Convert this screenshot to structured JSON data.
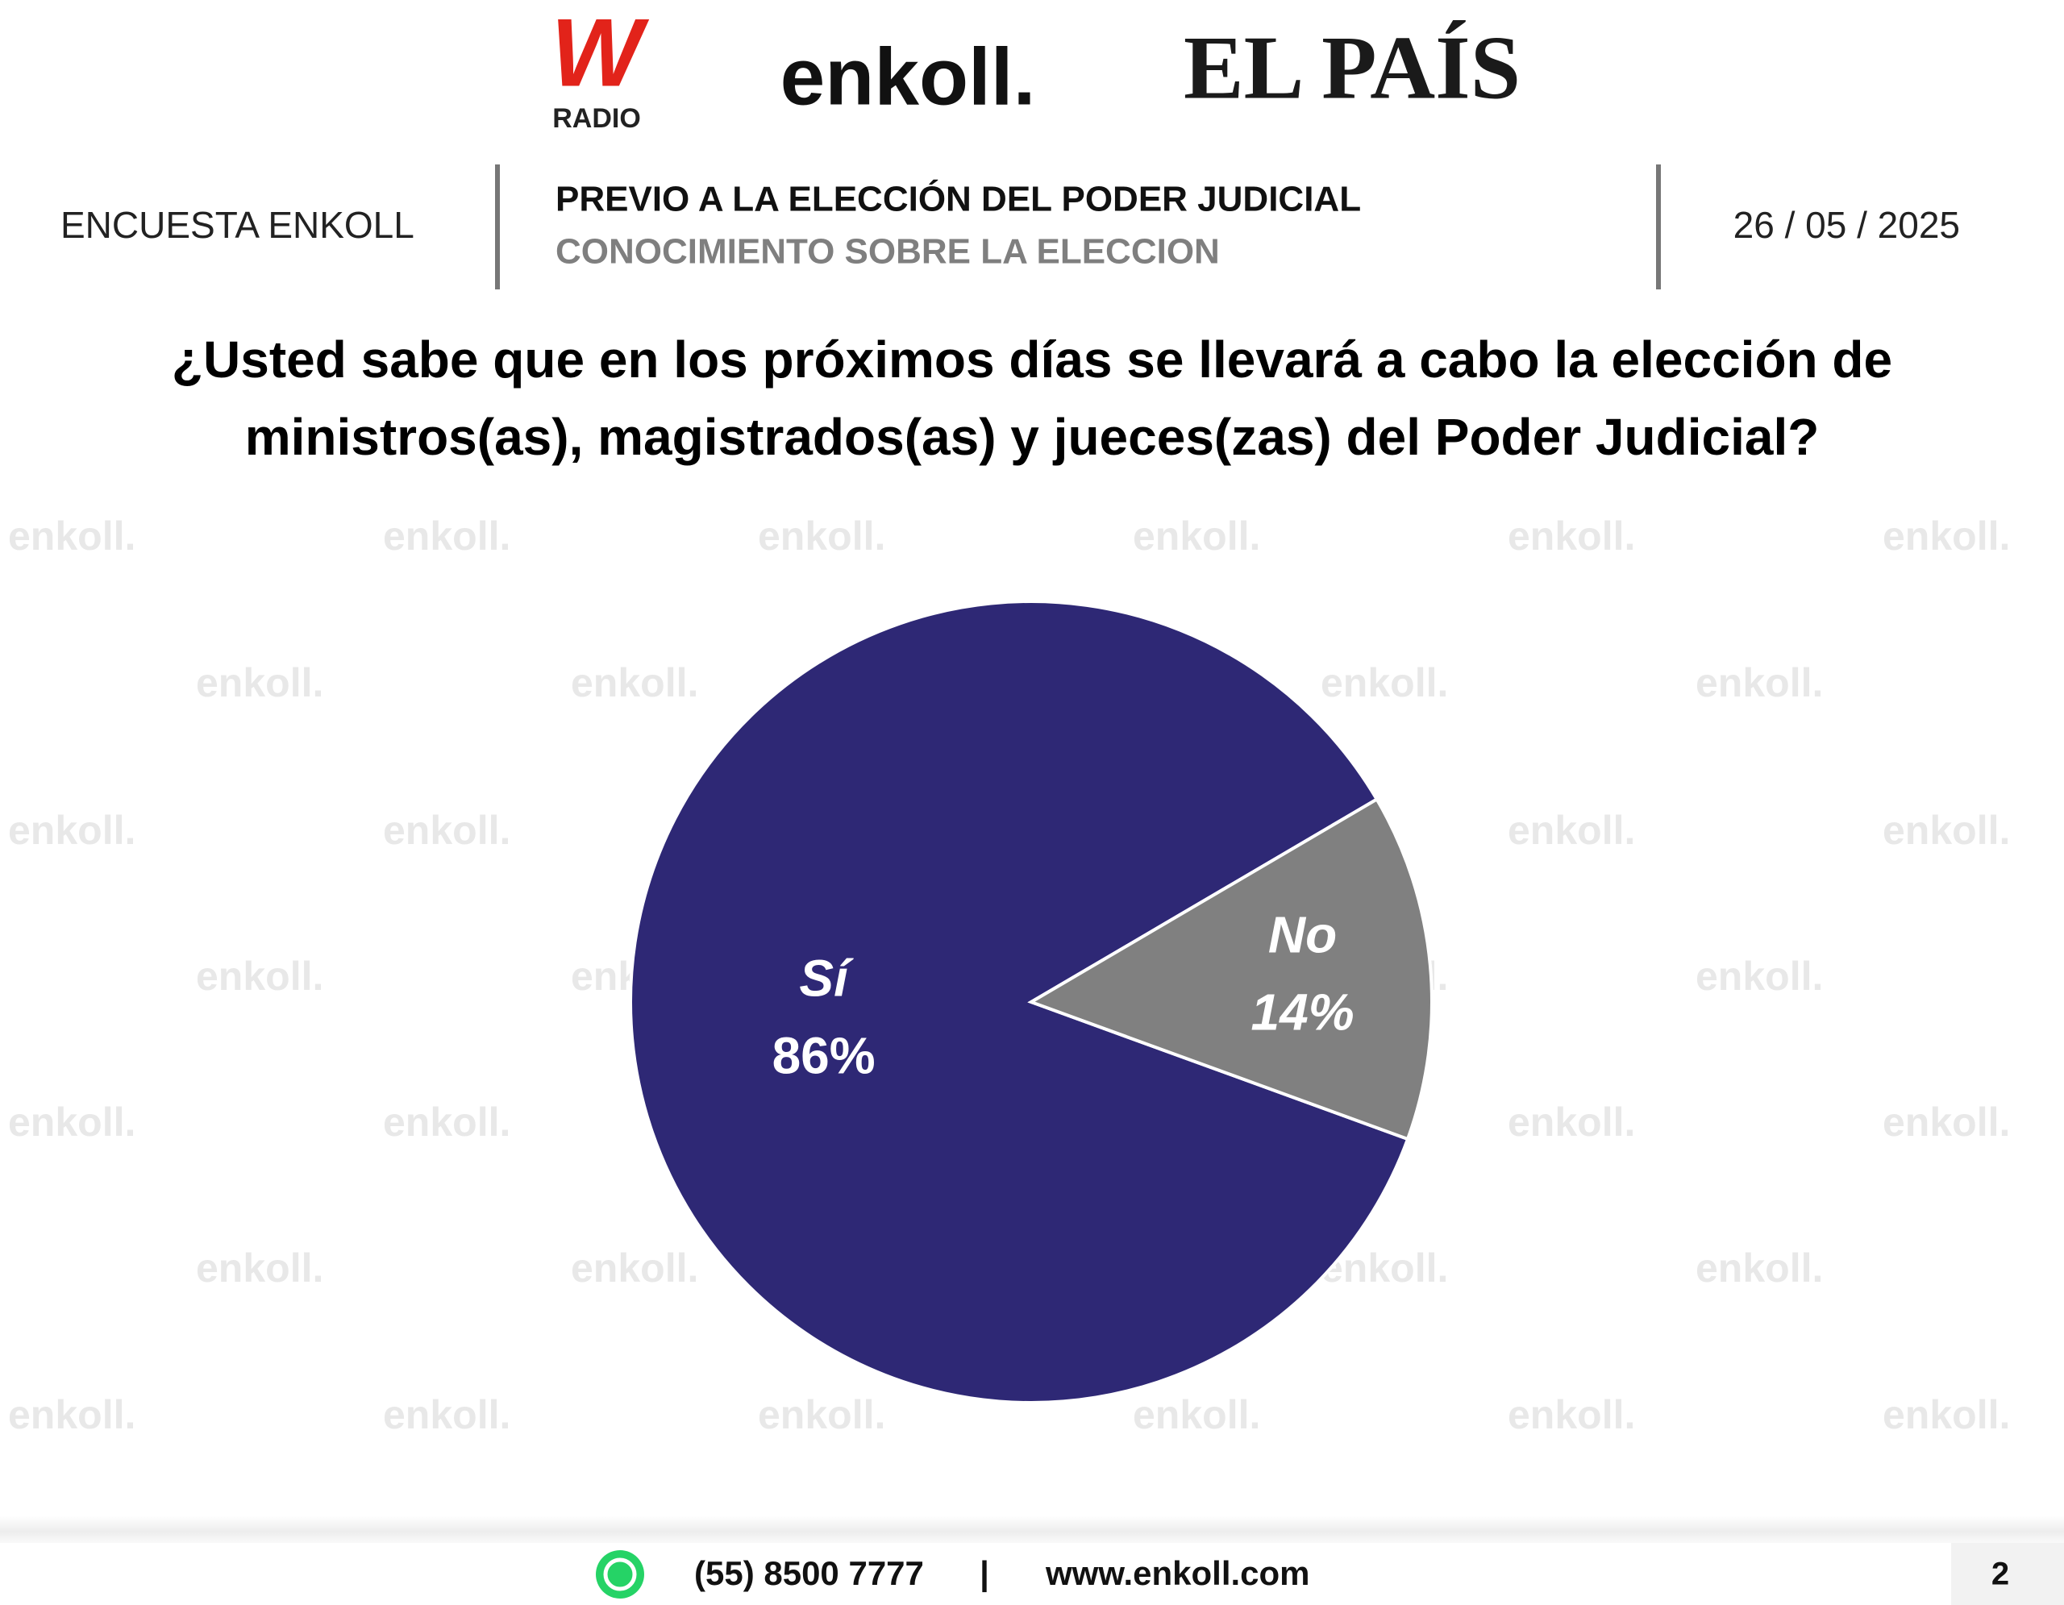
{
  "header": {
    "logo_w": "W",
    "logo_radio": "RADIO",
    "logo_enkoll": "enkoll.",
    "logo_elpais": "EL PAÍS",
    "survey": "ENCUESTA ENKOLL",
    "section_title": "PREVIO A LA ELECCIÓN DEL PODER JUDICIAL",
    "section_subtitle": "CONOCIMIENTO SOBRE LA ELECCION",
    "date": "26 / 05 / 2025"
  },
  "watermark": "enkoll.",
  "chart_data": {
    "type": "pie",
    "title": [
      "¿Usted sabe que en los próximos días se llevará a cabo la elección de",
      "ministros(as), magistrados(as) y jueces(zas) del Poder Judicial?"
    ],
    "categories": [
      "Sí",
      "No"
    ],
    "values": [
      86,
      14
    ],
    "value_labels": [
      "86%",
      "14%"
    ],
    "colors": [
      "#2e2875",
      "#808080"
    ]
  },
  "footer": {
    "phone": "(55) 8500 7777",
    "separator": "|",
    "website": "www.enkoll.com",
    "page": "2"
  }
}
